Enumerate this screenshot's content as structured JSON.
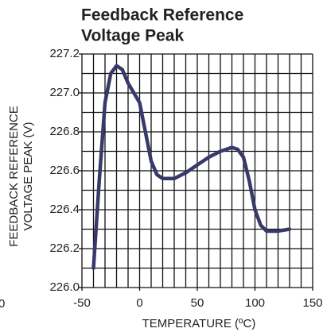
{
  "chart_data": {
    "type": "line",
    "title": [
      "Feedback Reference",
      "Voltage Peak"
    ],
    "y_label": [
      "FEEDBACK REFERENCE",
      "VOLTAGE PEAK (V)"
    ],
    "x_label": "TEMPERATURE (ºC)",
    "annotations": [
      "0"
    ],
    "x": [
      -40,
      -35,
      -30,
      -25,
      -20,
      -15,
      -10,
      0,
      5,
      10,
      15,
      20,
      30,
      40,
      50,
      60,
      70,
      80,
      85,
      90,
      95,
      100,
      105,
      110,
      120,
      130
    ],
    "series": [
      {
        "name": "Voltage Peak",
        "color": "#38386a",
        "values": [
          226.1,
          226.55,
          226.95,
          227.1,
          227.14,
          227.12,
          227.05,
          226.95,
          226.8,
          226.65,
          226.58,
          226.56,
          226.56,
          226.59,
          226.63,
          226.67,
          226.7,
          226.72,
          226.71,
          226.67,
          226.55,
          226.4,
          226.32,
          226.29,
          226.29,
          226.3
        ]
      }
    ],
    "xlim": [
      -50,
      150
    ],
    "xticks": [
      -50,
      0,
      50,
      100,
      150
    ],
    "ylim": [
      226.0,
      227.2
    ],
    "yticks": [
      {
        "value": 226.0,
        "label": "226.0"
      },
      226.2,
      226.4,
      226.6,
      226.8,
      {
        "value": 227.0,
        "label": "227.0"
      },
      227.2
    ],
    "x_grid": [
      -50,
      -40,
      -30,
      -20,
      -10,
      0,
      10,
      20,
      30,
      40,
      50,
      60,
      70,
      80,
      90,
      100,
      110,
      120,
      130,
      140,
      150
    ],
    "y_grid": [
      226.0,
      226.1,
      226.2,
      226.3,
      226.4,
      226.5,
      226.6,
      226.7,
      226.8,
      226.9,
      227.0,
      227.1,
      227.2
    ]
  }
}
